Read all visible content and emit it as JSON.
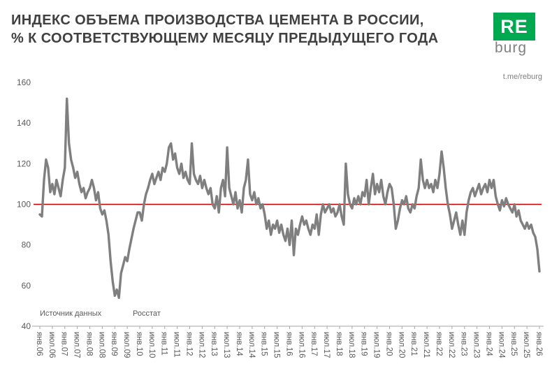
{
  "header": {
    "title_line1": "ИНДЕКС ОБЪЕМА ПРОИЗВОДСТВА ЦЕМЕНТА В РОССИИ,",
    "title_line2": "% К СООТВЕТСТВУЮЩЕМУ МЕСЯЦУ ПРЕДЫДУЩЕГО ГОДА",
    "logo": {
      "top": "RE",
      "bottom": "burg",
      "green_color": "#00a84f"
    },
    "link": "t.me/reburg"
  },
  "source": {
    "label": "Источник данных",
    "value": "Росстат"
  },
  "chart_data": {
    "type": "line",
    "title": "Индекс объема производства цемента в России, % к соответствующему месяцу предыдущего года",
    "frequency": "monthly",
    "x_start": "янв.06",
    "x_end": "янв.26",
    "ylim": [
      40,
      160
    ],
    "yticks": [
      160,
      140,
      120,
      100,
      80,
      60,
      40
    ],
    "grid": false,
    "legend": false,
    "reference_line": {
      "value": 100,
      "color": "#c00000"
    },
    "x_tick_labels": [
      "янв.06",
      "июл.06",
      "янв.07",
      "июл.07",
      "янв.08",
      "июл.08",
      "янв.09",
      "июл.09",
      "янв.10",
      "июл.10",
      "янв.11",
      "июл.11",
      "янв.12",
      "июл.12",
      "янв.13",
      "июл.13",
      "янв.14",
      "июл.14",
      "янв.15",
      "июл.15",
      "янв.16",
      "июл.16",
      "янв.17",
      "июл.17",
      "янв.18",
      "июл.18",
      "янв.19",
      "июл.19",
      "янв.20",
      "июл.20",
      "янв.21",
      "июл.21",
      "янв.22",
      "июл.22",
      "янв.23",
      "июл.23",
      "янв.24",
      "июл.24",
      "янв.25",
      "июл.25",
      "янв.26"
    ],
    "x_ticks_every_n_points": 6,
    "series": [
      {
        "name": "Индекс объема производства цемента, %",
        "color": "#7f7f7f",
        "values": [
          95,
          94,
          112,
          122,
          118,
          106,
          110,
          105,
          112,
          108,
          104,
          112,
          118,
          152,
          130,
          122,
          118,
          113,
          116,
          110,
          106,
          108,
          103,
          106,
          108,
          112,
          108,
          102,
          106,
          98,
          95,
          97,
          92,
          85,
          72,
          62,
          55,
          58,
          54,
          66,
          70,
          74,
          72,
          78,
          83,
          88,
          92,
          96,
          96,
          92,
          100,
          105,
          108,
          112,
          115,
          110,
          113,
          116,
          112,
          118,
          116,
          120,
          128,
          130,
          122,
          125,
          118,
          115,
          120,
          113,
          116,
          112,
          110,
          130,
          115,
          112,
          110,
          114,
          108,
          112,
          108,
          105,
          108,
          100,
          98,
          104,
          96,
          108,
          112,
          104,
          128,
          108,
          104,
          100,
          106,
          98,
          102,
          96,
          108,
          112,
          122,
          105,
          102,
          106,
          100,
          103,
          98,
          100,
          95,
          88,
          92,
          85,
          90,
          88,
          92,
          86,
          90,
          85,
          82,
          88,
          80,
          92,
          75,
          88,
          85,
          90,
          94,
          90,
          92,
          88,
          85,
          90,
          88,
          95,
          85,
          95,
          100,
          96,
          98,
          100,
          96,
          98,
          94,
          96,
          100,
          94,
          90,
          120,
          105,
          100,
          98,
          103,
          100,
          104,
          100,
          106,
          104,
          112,
          100,
          108,
          115,
          105,
          110,
          106,
          112,
          104,
          100,
          106,
          110,
          108,
          100,
          88,
          92,
          98,
          102,
          100,
          104,
          98,
          96,
          100,
          98,
          104,
          108,
          122,
          112,
          108,
          112,
          108,
          110,
          106,
          112,
          108,
          115,
          126,
          118,
          108,
          100,
          95,
          88,
          92,
          96,
          90,
          85,
          92,
          85,
          96,
          102,
          106,
          108,
          104,
          107,
          110,
          105,
          108,
          110,
          106,
          112,
          108,
          112,
          104,
          100,
          97,
          102,
          99,
          103,
          100,
          98,
          96,
          100,
          94,
          97,
          92,
          90,
          88,
          91,
          88,
          90,
          86,
          84,
          78,
          67
        ]
      }
    ]
  }
}
